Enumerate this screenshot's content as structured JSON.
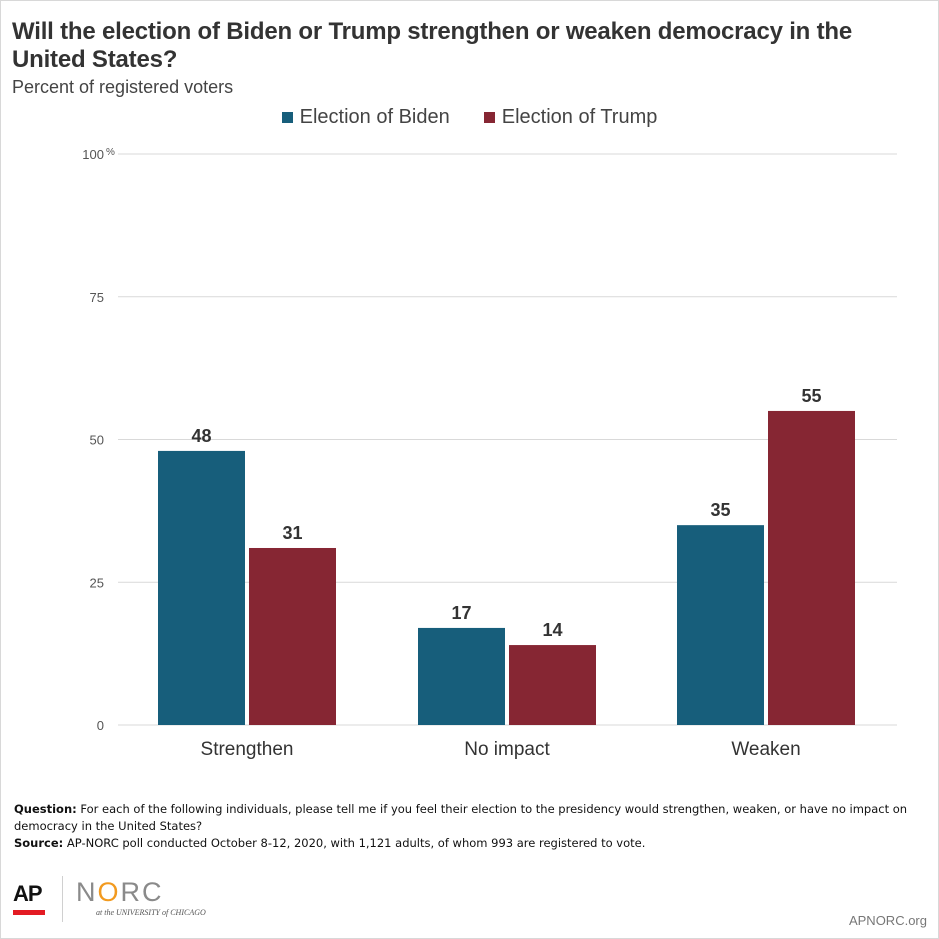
{
  "title": "Will the election of Biden or Trump strengthen or weaken democracy in the United States?",
  "subtitle": "Percent of registered voters",
  "colors": {
    "biden": "#175e7b",
    "trump": "#862633",
    "grid": "#d9d9d9",
    "text": "#333333"
  },
  "chart_data": {
    "type": "bar",
    "categories": [
      "Strengthen",
      "No impact",
      "Weaken"
    ],
    "series": [
      {
        "name": "Election of Biden",
        "values": [
          48,
          17,
          35
        ]
      },
      {
        "name": "Election of Trump",
        "values": [
          31,
          14,
          55
        ]
      }
    ],
    "ylim": [
      0,
      100
    ],
    "yticks": [
      "0",
      "25",
      "50",
      "75",
      "100"
    ],
    "ytick_suffix": "%",
    "grid": true,
    "legend_position": "top-center"
  },
  "notes": {
    "question_label": "Question:",
    "question_text": "For each of the following individuals, please tell me if you feel their election to the presidency would strengthen, weaken, or have no impact on democracy in the United States?",
    "source_label": "Source:",
    "source_text": "AP-NORC poll conducted October 8-12, 2020,  with 1,121 adults, of whom 993 are registered to vote."
  },
  "branding": {
    "ap": "AP",
    "norc_n": "N",
    "norc_o": "O",
    "norc_rc": "RC",
    "university": "at the UNIVERSITY of CHICAGO",
    "site": "APNORC.org"
  }
}
